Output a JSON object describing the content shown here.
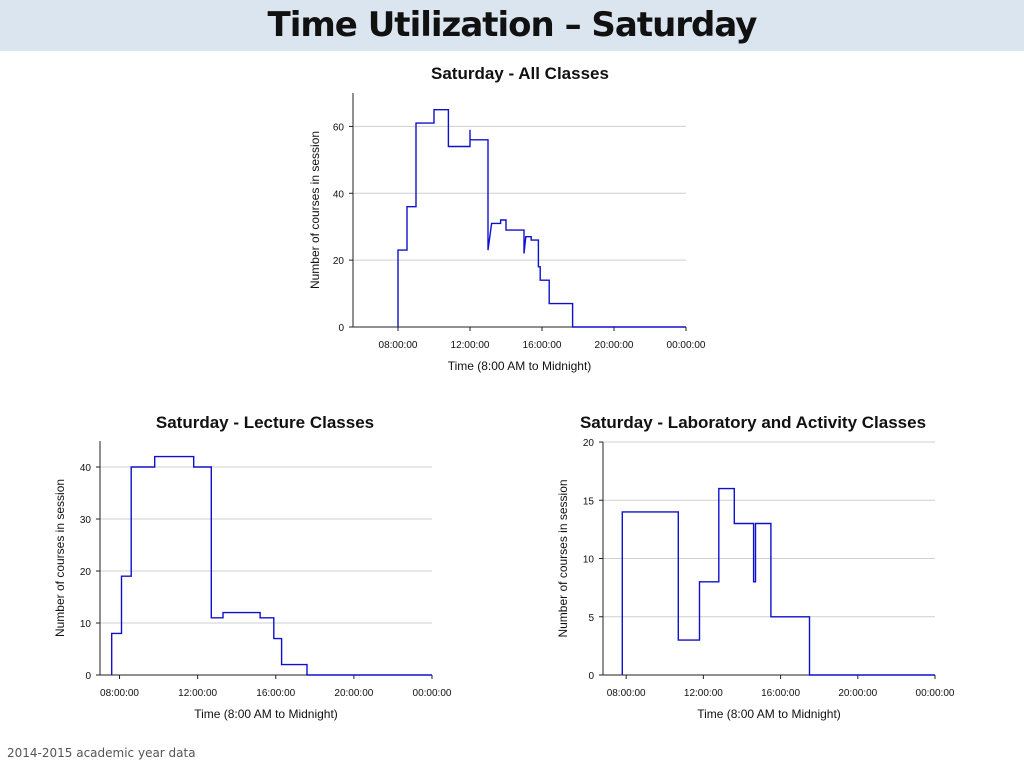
{
  "slide": {
    "title": "Time Utilization – Saturday",
    "footer": "2014-2015 academic year data"
  },
  "colors": {
    "series": "#1010cc",
    "grid": "#cfcfcf",
    "axis": "#222222",
    "title_bar": "#dbe5f0"
  },
  "chart_data": [
    {
      "type": "line",
      "step": true,
      "title": "Saturday - All Classes",
      "xlabel": "Time (8:00 AM to Midnight)",
      "ylabel": "Number of courses in session",
      "xlim": [
        5.5,
        24
      ],
      "ylim": [
        0,
        70
      ],
      "x_ticks": [
        8,
        12,
        16,
        20,
        24
      ],
      "x_tick_labels": [
        "08:00:00",
        "12:00:00",
        "16:00:00",
        "20:00:00",
        "00:00:00"
      ],
      "y_ticks": [
        0,
        20,
        40,
        60
      ],
      "y_tick_labels": [
        "0",
        "20",
        "40",
        "60"
      ],
      "grid": true,
      "series": [
        {
          "values": [
            [
              8.0,
              0
            ],
            [
              8.0,
              23
            ],
            [
              8.5,
              23
            ],
            [
              8.5,
              36
            ],
            [
              9.0,
              36
            ],
            [
              9.0,
              61
            ],
            [
              10.0,
              61
            ],
            [
              10.0,
              65
            ],
            [
              10.8,
              65
            ],
            [
              10.8,
              54
            ],
            [
              12.0,
              54
            ],
            [
              12.0,
              59
            ],
            [
              12.0,
              56
            ],
            [
              13.0,
              56
            ],
            [
              13.0,
              23
            ],
            [
              13.2,
              31
            ],
            [
              13.7,
              31
            ],
            [
              13.7,
              32
            ],
            [
              14.0,
              32
            ],
            [
              14.0,
              29
            ],
            [
              15.0,
              29
            ],
            [
              15.0,
              22
            ],
            [
              15.1,
              27
            ],
            [
              15.4,
              27
            ],
            [
              15.4,
              26
            ],
            [
              15.8,
              26
            ],
            [
              15.8,
              18
            ],
            [
              15.9,
              18
            ],
            [
              15.9,
              14
            ],
            [
              16.4,
              14
            ],
            [
              16.4,
              7
            ],
            [
              17.7,
              7
            ],
            [
              17.7,
              0
            ],
            [
              24.0,
              0
            ]
          ]
        }
      ]
    },
    {
      "type": "line",
      "step": true,
      "title": "Saturday - Lecture Classes",
      "xlabel": "Time (8:00 AM to Midnight)",
      "ylabel": "Number of courses in session",
      "xlim": [
        7.0,
        24
      ],
      "ylim": [
        0,
        45
      ],
      "x_ticks": [
        8,
        12,
        16,
        20,
        24
      ],
      "x_tick_labels": [
        "08:00:00",
        "12:00:00",
        "16:00:00",
        "20:00:00",
        "00:00:00"
      ],
      "y_ticks": [
        0,
        10,
        20,
        30,
        40
      ],
      "y_tick_labels": [
        "0",
        "10",
        "20",
        "30",
        "40"
      ],
      "grid": true,
      "series": [
        {
          "values": [
            [
              7.6,
              0
            ],
            [
              7.6,
              8
            ],
            [
              8.1,
              8
            ],
            [
              8.1,
              19
            ],
            [
              8.6,
              19
            ],
            [
              8.6,
              40
            ],
            [
              9.8,
              40
            ],
            [
              9.8,
              42
            ],
            [
              11.8,
              42
            ],
            [
              11.8,
              40
            ],
            [
              12.7,
              40
            ],
            [
              12.7,
              11
            ],
            [
              13.3,
              11
            ],
            [
              13.3,
              12
            ],
            [
              15.2,
              12
            ],
            [
              15.2,
              11
            ],
            [
              15.9,
              11
            ],
            [
              15.9,
              7
            ],
            [
              16.3,
              7
            ],
            [
              16.3,
              2
            ],
            [
              17.6,
              2
            ],
            [
              17.6,
              0
            ],
            [
              24.0,
              0
            ]
          ]
        }
      ]
    },
    {
      "type": "line",
      "step": true,
      "title": "Saturday - Laboratory and Activity Classes",
      "xlabel": "Time (8:00 AM to Midnight)",
      "ylabel": "Number of courses in session",
      "xlim": [
        6.8,
        24
      ],
      "ylim": [
        0,
        20
      ],
      "x_ticks": [
        8,
        12,
        16,
        20,
        24
      ],
      "x_tick_labels": [
        "08:00:00",
        "12:00:00",
        "16:00:00",
        "20:00:00",
        "00:00:00"
      ],
      "y_ticks": [
        0,
        5,
        10,
        15,
        20
      ],
      "y_tick_labels": [
        "0",
        "5",
        "10",
        "15",
        "20"
      ],
      "grid": true,
      "series": [
        {
          "values": [
            [
              7.8,
              0
            ],
            [
              7.8,
              14
            ],
            [
              10.7,
              14
            ],
            [
              10.7,
              3
            ],
            [
              11.8,
              3
            ],
            [
              11.8,
              8
            ],
            [
              12.8,
              8
            ],
            [
              12.8,
              16
            ],
            [
              13.6,
              16
            ],
            [
              13.6,
              13
            ],
            [
              14.6,
              13
            ],
            [
              14.6,
              8
            ],
            [
              14.7,
              8
            ],
            [
              14.7,
              13
            ],
            [
              15.5,
              13
            ],
            [
              15.5,
              5
            ],
            [
              17.5,
              5
            ],
            [
              17.5,
              0
            ],
            [
              24.0,
              0
            ]
          ]
        }
      ]
    }
  ]
}
